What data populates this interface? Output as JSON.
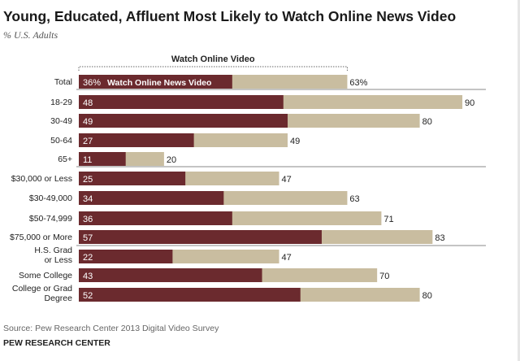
{
  "title": "Young, Educated, Affluent Most Likely to Watch Online News Video",
  "subtitle": "% U.S. Adults",
  "source": "Source: Pew Research Center 2013 Digital Video Survey",
  "org": "PEW RESEARCH CENTER",
  "colors": {
    "news": "#6b2a2e",
    "video": "#c9bda0",
    "divider": "#888888"
  },
  "chart_data": {
    "type": "bar",
    "orientation": "horizontal",
    "bracket_label": "Watch Online Video",
    "total_inline_label": "Watch Online News Video",
    "categories": [
      "Total",
      "18-29",
      "30-49",
      "50-64",
      "65+",
      "$30,000 or Less",
      "$30-49,000",
      "$50-74,999",
      "$75,000 or More",
      "H.S. Grad or Less",
      "Some College",
      "College or Grad Degree"
    ],
    "category_lines": [
      [
        "Total"
      ],
      [
        "18-29"
      ],
      [
        "30-49"
      ],
      [
        "50-64"
      ],
      [
        "65+"
      ],
      [
        "$30,000 or Less"
      ],
      [
        "$30-49,000"
      ],
      [
        "$50-74,999"
      ],
      [
        "$75,000 or More"
      ],
      [
        "H.S. Grad",
        "or Less"
      ],
      [
        "Some College"
      ],
      [
        "College or Grad",
        "Degree"
      ]
    ],
    "series": [
      {
        "name": "Watch Online News Video",
        "values": [
          36,
          48,
          49,
          27,
          11,
          25,
          34,
          36,
          57,
          22,
          43,
          52
        ]
      },
      {
        "name": "Watch Online Video",
        "values": [
          63,
          90,
          80,
          49,
          20,
          47,
          63,
          71,
          83,
          47,
          70,
          80
        ]
      }
    ],
    "value_labels": {
      "news": [
        "36%",
        "48",
        "49",
        "27",
        "11",
        "25",
        "34",
        "36",
        "57",
        "22",
        "43",
        "52"
      ],
      "video": [
        "63%",
        "90",
        "80",
        "49",
        "20",
        "47",
        "63",
        "71",
        "83",
        "47",
        "70",
        "80"
      ]
    },
    "groups": [
      [
        0
      ],
      [
        1,
        2,
        3,
        4
      ],
      [
        5,
        6,
        7,
        8
      ],
      [
        9,
        10,
        11
      ]
    ],
    "xlim": [
      0,
      90
    ]
  }
}
